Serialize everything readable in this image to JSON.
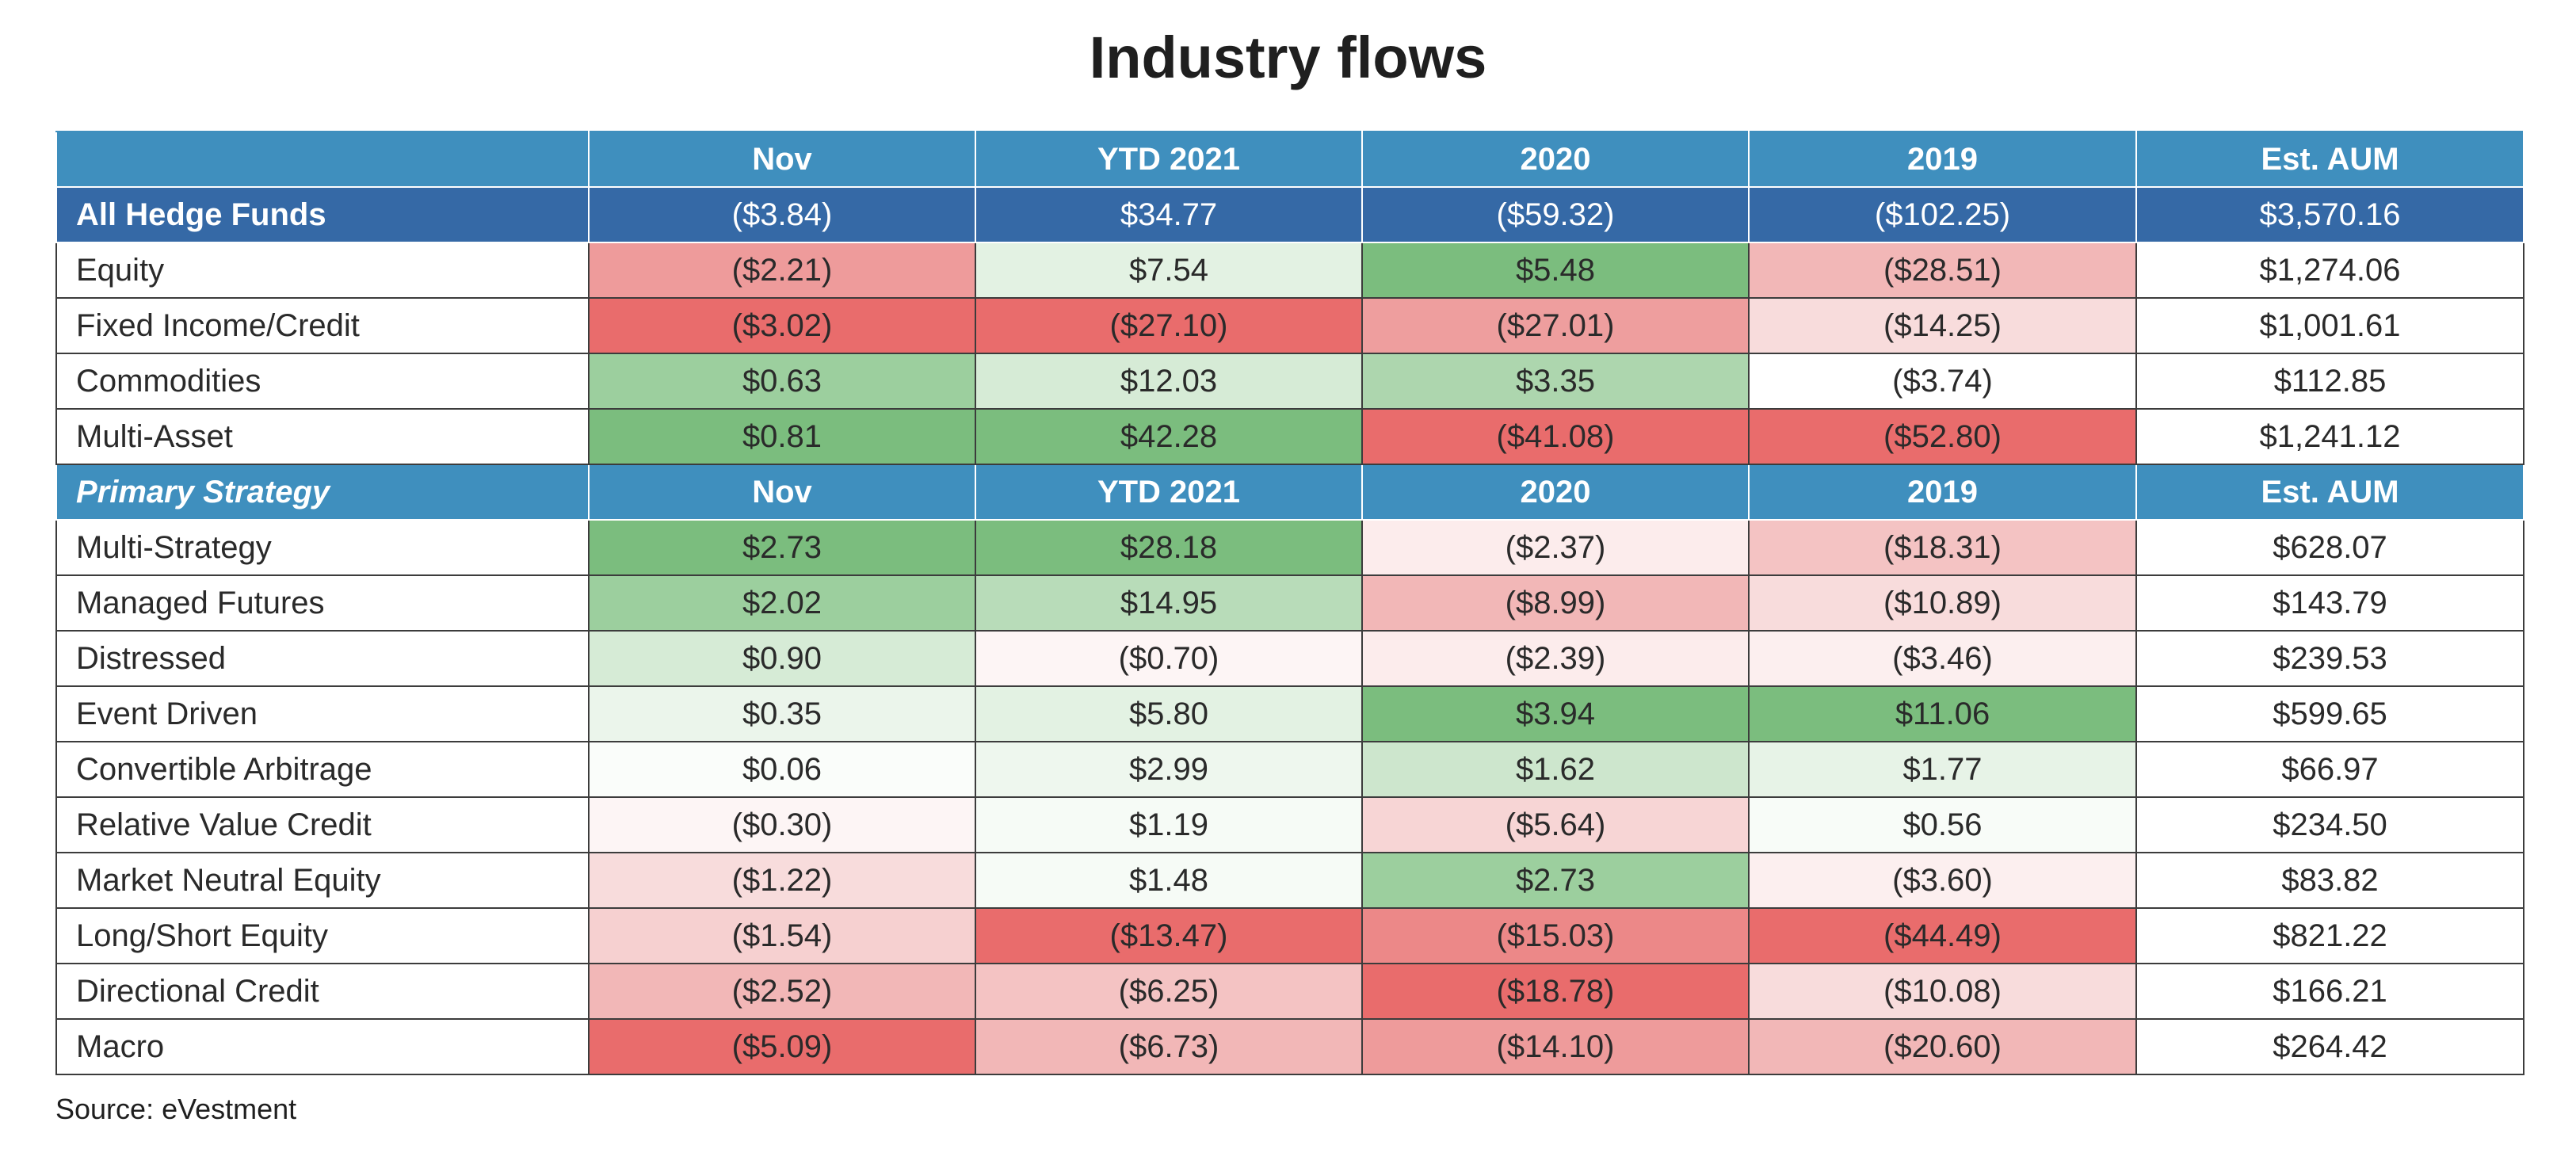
{
  "chart_data": {
    "type": "table",
    "title": "Industry flows",
    "source": "Source: eVestment",
    "columns": [
      "Nov",
      "YTD 2021",
      "2020",
      "2019",
      "Est. AUM"
    ],
    "total_row": {
      "label": "All Hedge Funds",
      "values": [
        "($3.84)",
        "$34.77",
        "($59.32)",
        "($102.25)",
        "$3,570.16"
      ]
    },
    "asset_class_rows": [
      {
        "label": "Equity",
        "values": [
          "($2.21)",
          "$7.54",
          "$5.48",
          "($28.51)",
          "$1,274.06"
        ],
        "colors": [
          "#ee9b9b",
          "#e3f2e3",
          "#7bbd7e",
          "#f2b7b7",
          "#ffffff"
        ]
      },
      {
        "label": "Fixed Income/Credit",
        "values": [
          "($3.02)",
          "($27.10)",
          "($27.01)",
          "($14.25)",
          "$1,001.61"
        ],
        "colors": [
          "#e96c6c",
          "#e96c6c",
          "#ee9e9e",
          "#f8dcdc",
          "#ffffff"
        ]
      },
      {
        "label": "Commodities",
        "values": [
          "$0.63",
          "$12.03",
          "$3.35",
          "($3.74)",
          "$112.85"
        ],
        "colors": [
          "#9ccf9e",
          "#d6ebd6",
          "#add6ae",
          "#ffffff",
          "#ffffff"
        ]
      },
      {
        "label": "Multi-Asset",
        "values": [
          "$0.81",
          "$42.28",
          "($41.08)",
          "($52.80)",
          "$1,241.12"
        ],
        "colors": [
          "#7bbd7e",
          "#7bbd7e",
          "#e96c6c",
          "#e96c6c",
          "#ffffff"
        ]
      }
    ],
    "strategy_header": {
      "label": "Primary Strategy",
      "columns": [
        "Nov",
        "YTD 2021",
        "2020",
        "2019",
        "Est. AUM"
      ]
    },
    "strategy_rows": [
      {
        "label": "Multi-Strategy",
        "values": [
          "$2.73",
          "$28.18",
          "($2.37)",
          "($18.31)",
          "$628.07"
        ],
        "colors": [
          "#7bbd7e",
          "#7bbd7e",
          "#fcecec",
          "#f4c3c3",
          "#ffffff"
        ]
      },
      {
        "label": "Managed Futures",
        "values": [
          "$2.02",
          "$14.95",
          "($8.99)",
          "($10.89)",
          "$143.79"
        ],
        "colors": [
          "#9ccf9e",
          "#b8dcb9",
          "#f2b7b7",
          "#f8dcdc",
          "#ffffff"
        ]
      },
      {
        "label": "Distressed",
        "values": [
          "$0.90",
          "($0.70)",
          "($2.39)",
          "($3.46)",
          "$239.53"
        ],
        "colors": [
          "#d6ebd6",
          "#fdf5f5",
          "#fcecec",
          "#fcefef",
          "#ffffff"
        ]
      },
      {
        "label": "Event Driven",
        "values": [
          "$0.35",
          "$5.80",
          "$3.94",
          "$11.06",
          "$599.65"
        ],
        "colors": [
          "#ebf5eb",
          "#e3f2e3",
          "#7bbd7e",
          "#7bbd7e",
          "#ffffff"
        ]
      },
      {
        "label": "Convertible Arbitrage",
        "values": [
          "$0.06",
          "$2.99",
          "$1.62",
          "$1.77",
          "$66.97"
        ],
        "colors": [
          "#fafdfa",
          "#eef7ee",
          "#cde6cd",
          "#e7f3e7",
          "#ffffff"
        ]
      },
      {
        "label": "Relative Value Credit",
        "values": [
          "($0.30)",
          "$1.19",
          "($5.64)",
          "$0.56",
          "$234.50"
        ],
        "colors": [
          "#fdf5f5",
          "#f6fbf6",
          "#f7d5d5",
          "#f8fcf8",
          "#ffffff"
        ]
      },
      {
        "label": "Market Neutral Equity",
        "values": [
          "($1.22)",
          "$1.48",
          "$2.73",
          "($3.60)",
          "$83.82"
        ],
        "colors": [
          "#f8dcdc",
          "#f6fbf6",
          "#9ccf9e",
          "#fcefef",
          "#ffffff"
        ]
      },
      {
        "label": "Long/Short Equity",
        "values": [
          "($1.54)",
          "($13.47)",
          "($15.03)",
          "($44.49)",
          "$821.22"
        ],
        "colors": [
          "#f6d0d0",
          "#e96c6c",
          "#ec8888",
          "#e96c6c",
          "#ffffff"
        ]
      },
      {
        "label": "Directional Credit",
        "values": [
          "($2.52)",
          "($6.25)",
          "($18.78)",
          "($10.08)",
          "$166.21"
        ],
        "colors": [
          "#f2b7b7",
          "#f4c3c3",
          "#e96c6c",
          "#f8dcdc",
          "#ffffff"
        ]
      },
      {
        "label": "Macro",
        "values": [
          "($5.09)",
          "($6.73)",
          "($14.10)",
          "($20.60)",
          "$264.42"
        ],
        "colors": [
          "#e96c6c",
          "#f2b7b7",
          "#ee9b9b",
          "#f2b7b7",
          "#ffffff"
        ]
      }
    ]
  }
}
